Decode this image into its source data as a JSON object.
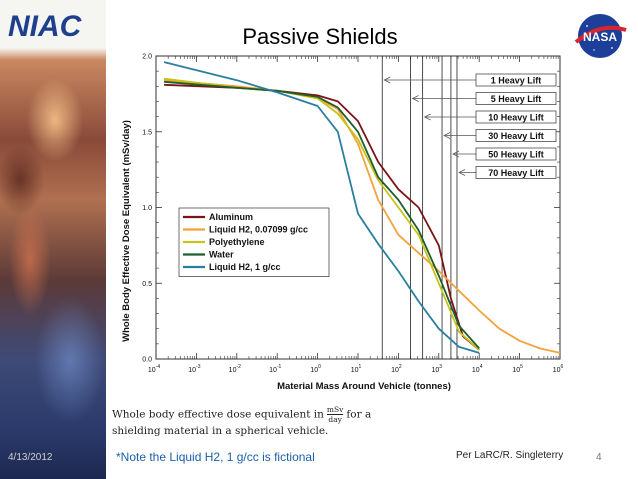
{
  "slide": {
    "logo_left": "NIAC",
    "logo_right": "NASA",
    "title": "Passive Shields",
    "caption_line1_before": "Whole body effective dose equivalent in",
    "caption_frac_num": "mSv",
    "caption_frac_den": "day",
    "caption_line1_after": "for a",
    "caption_line2": "shielding material in a spherical vehicle.",
    "footnote": "*Note the Liquid H2, 1 g/cc is fictional",
    "credit": "Per LaRC/R. Singleterry",
    "date": "4/13/2012",
    "page_number": "4"
  },
  "colors": {
    "title": "#000000",
    "footnote": "#1a5fa8",
    "frame": "#333333"
  },
  "chart_data": {
    "type": "line",
    "xscale": "log",
    "xlabel": "Material Mass Around Vehicle (tonnes)",
    "ylabel": "Whole Body Effective Dose Equivalent (mSv/day)",
    "xlim_exp": [
      -4,
      6
    ],
    "ylim": [
      0.0,
      2.0
    ],
    "x_ticks": [
      {
        "base": "10",
        "exp": "-4",
        "v": -4
      },
      {
        "base": "10",
        "exp": "-3",
        "v": -3
      },
      {
        "base": "10",
        "exp": "-2",
        "v": -2
      },
      {
        "base": "10",
        "exp": "-1",
        "v": -1
      },
      {
        "base": "10",
        "exp": "0",
        "v": 0
      },
      {
        "base": "10",
        "exp": "1",
        "v": 1
      },
      {
        "base": "10",
        "exp": "2",
        "v": 2
      },
      {
        "base": "10",
        "exp": "3",
        "v": 3
      },
      {
        "base": "10",
        "exp": "4",
        "v": 4
      },
      {
        "base": "10",
        "exp": "5",
        "v": 5
      },
      {
        "base": "10",
        "exp": "6",
        "v": 6
      }
    ],
    "y_ticks": [
      {
        "label": "0.0",
        "v": 0.0
      },
      {
        "label": "0.5",
        "v": 0.5
      },
      {
        "label": "1.0",
        "v": 1.0
      },
      {
        "label": "1.5",
        "v": 1.5
      },
      {
        "label": "2.0",
        "v": 2.0
      }
    ],
    "legend_position": "center-left",
    "series": [
      {
        "name": "Aluminum",
        "color": "#7b1416",
        "log10_x": [
          -3.8,
          -2,
          -1,
          0,
          0.5,
          1,
          1.5,
          2,
          2.5,
          3,
          3.3,
          3.6,
          4
        ],
        "y": [
          1.81,
          1.79,
          1.77,
          1.74,
          1.7,
          1.57,
          1.3,
          1.12,
          1.0,
          0.75,
          0.4,
          0.15,
          0.06
        ]
      },
      {
        "name": "Liquid H2, 0.07099 g/cc",
        "color": "#f4a23c",
        "log10_x": [
          -3.8,
          -2,
          -1,
          0,
          0.5,
          1,
          1.5,
          2,
          2.5,
          3,
          3.5,
          4,
          4.5,
          5,
          5.5,
          6
        ],
        "y": [
          1.84,
          1.8,
          1.77,
          1.72,
          1.65,
          1.42,
          1.05,
          0.82,
          0.7,
          0.58,
          0.45,
          0.32,
          0.2,
          0.12,
          0.07,
          0.04
        ]
      },
      {
        "name": "Polyethylene",
        "color": "#c8c21a",
        "log10_x": [
          -3.8,
          -2,
          -1,
          0,
          0.5,
          1,
          1.5,
          2,
          2.5,
          3,
          3.5,
          4
        ],
        "y": [
          1.85,
          1.79,
          1.77,
          1.72,
          1.62,
          1.45,
          1.18,
          1.0,
          0.82,
          0.5,
          0.18,
          0.06
        ]
      },
      {
        "name": "Water",
        "color": "#1f5e2d",
        "log10_x": [
          -3.8,
          -2,
          -1,
          0,
          0.5,
          1,
          1.5,
          2,
          2.5,
          3,
          3.5,
          4
        ],
        "y": [
          1.83,
          1.79,
          1.77,
          1.73,
          1.66,
          1.5,
          1.2,
          1.05,
          0.85,
          0.55,
          0.22,
          0.07
        ]
      },
      {
        "name": "Liquid H2, 1 g/cc",
        "color": "#2a7f9e",
        "log10_x": [
          -3.8,
          -2,
          -1,
          0,
          0.5,
          1,
          1.5,
          2,
          2.5,
          3,
          3.5,
          4
        ],
        "y": [
          1.96,
          1.84,
          1.76,
          1.67,
          1.5,
          0.96,
          0.76,
          0.58,
          0.38,
          0.2,
          0.08,
          0.04
        ]
      }
    ],
    "annotations": [
      {
        "label": "1 Heavy Lift",
        "log10_x": 1.6
      },
      {
        "label": "5 Heavy Lift",
        "log10_x": 2.3
      },
      {
        "label": "10 Heavy Lift",
        "log10_x": 2.6
      },
      {
        "label": "30 Heavy Lift",
        "log10_x": 3.08
      },
      {
        "label": "50 Heavy Lift",
        "log10_x": 3.3
      },
      {
        "label": "70 Heavy Lift",
        "log10_x": 3.45
      }
    ]
  }
}
